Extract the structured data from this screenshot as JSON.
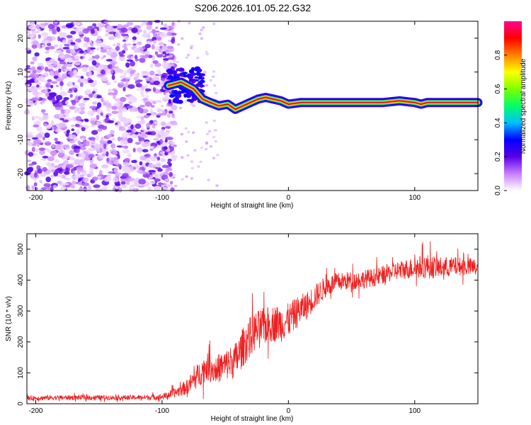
{
  "title": "S206.2026.101.05.22.G32",
  "chart_data": [
    {
      "type": "heatmap",
      "xlabel": "Height of straight line (km)",
      "ylabel": "Frequency (Hz)",
      "xlim": [
        -207,
        150
      ],
      "ylim": [
        -25,
        25
      ],
      "xticks": [
        -200,
        -100,
        0,
        100
      ],
      "yticks": [
        20,
        10,
        0,
        -10,
        -20
      ],
      "colorbar": {
        "label": "Normalized spectral amplitude",
        "range": [
          0,
          1
        ],
        "ticks": [
          "0.0",
          "0.2",
          "0.4",
          "0.6",
          "0.8"
        ],
        "colors": [
          "#ffffff",
          "#c77dff",
          "#5a00e6",
          "#0000ff",
          "#00bfff",
          "#00ff66",
          "#80ff00",
          "#ffff00",
          "#ff8000",
          "#ff0000",
          "#ff0090"
        ]
      },
      "ridge": {
        "x": [
          -95,
          -85,
          -75,
          -68,
          -62,
          -55,
          -48,
          -42,
          -36,
          -30,
          -24,
          -18,
          -12,
          -6,
          0,
          10,
          20,
          40,
          60,
          75,
          80,
          88,
          95,
          100,
          105,
          110,
          120,
          135,
          150
        ],
        "y": [
          6,
          7,
          5,
          2,
          1,
          0,
          0.5,
          -1,
          0,
          1,
          2,
          2.5,
          2,
          1.5,
          0.5,
          1,
          1,
          1,
          1,
          1,
          1.2,
          1.5,
          1.2,
          1,
          0.5,
          1,
          1,
          1,
          1
        ]
      }
    },
    {
      "type": "line",
      "xlabel": "Height of straight line (km)",
      "ylabel": "SNR (10 * v/v)",
      "xlim": [
        -207,
        150
      ],
      "ylim": [
        0,
        550
      ],
      "xticks": [
        -200,
        -100,
        0,
        100
      ],
      "yticks": [
        0,
        100,
        200,
        300,
        400,
        500
      ],
      "series": [
        {
          "name": "SNR",
          "color": "#ee2020",
          "x": [
            -207,
            -180,
            -150,
            -120,
            -100,
            -90,
            -80,
            -72,
            -65,
            -58,
            -50,
            -42,
            -35,
            -28,
            -20,
            -12,
            -5,
            0,
            8,
            15,
            22,
            30,
            40,
            55,
            70,
            85,
            100,
            110,
            120,
            135,
            150
          ],
          "y": [
            18,
            20,
            20,
            20,
            22,
            35,
            55,
            90,
            120,
            110,
            125,
            140,
            190,
            230,
            250,
            260,
            260,
            270,
            300,
            320,
            350,
            380,
            395,
            400,
            410,
            430,
            440,
            445,
            440,
            445,
            440
          ],
          "amplitude": [
            8,
            8,
            8,
            8,
            10,
            15,
            25,
            40,
            45,
            45,
            50,
            60,
            65,
            65,
            60,
            60,
            60,
            55,
            50,
            45,
            40,
            35,
            30,
            30,
            30,
            30,
            35,
            40,
            35,
            30,
            30
          ]
        }
      ]
    }
  ]
}
